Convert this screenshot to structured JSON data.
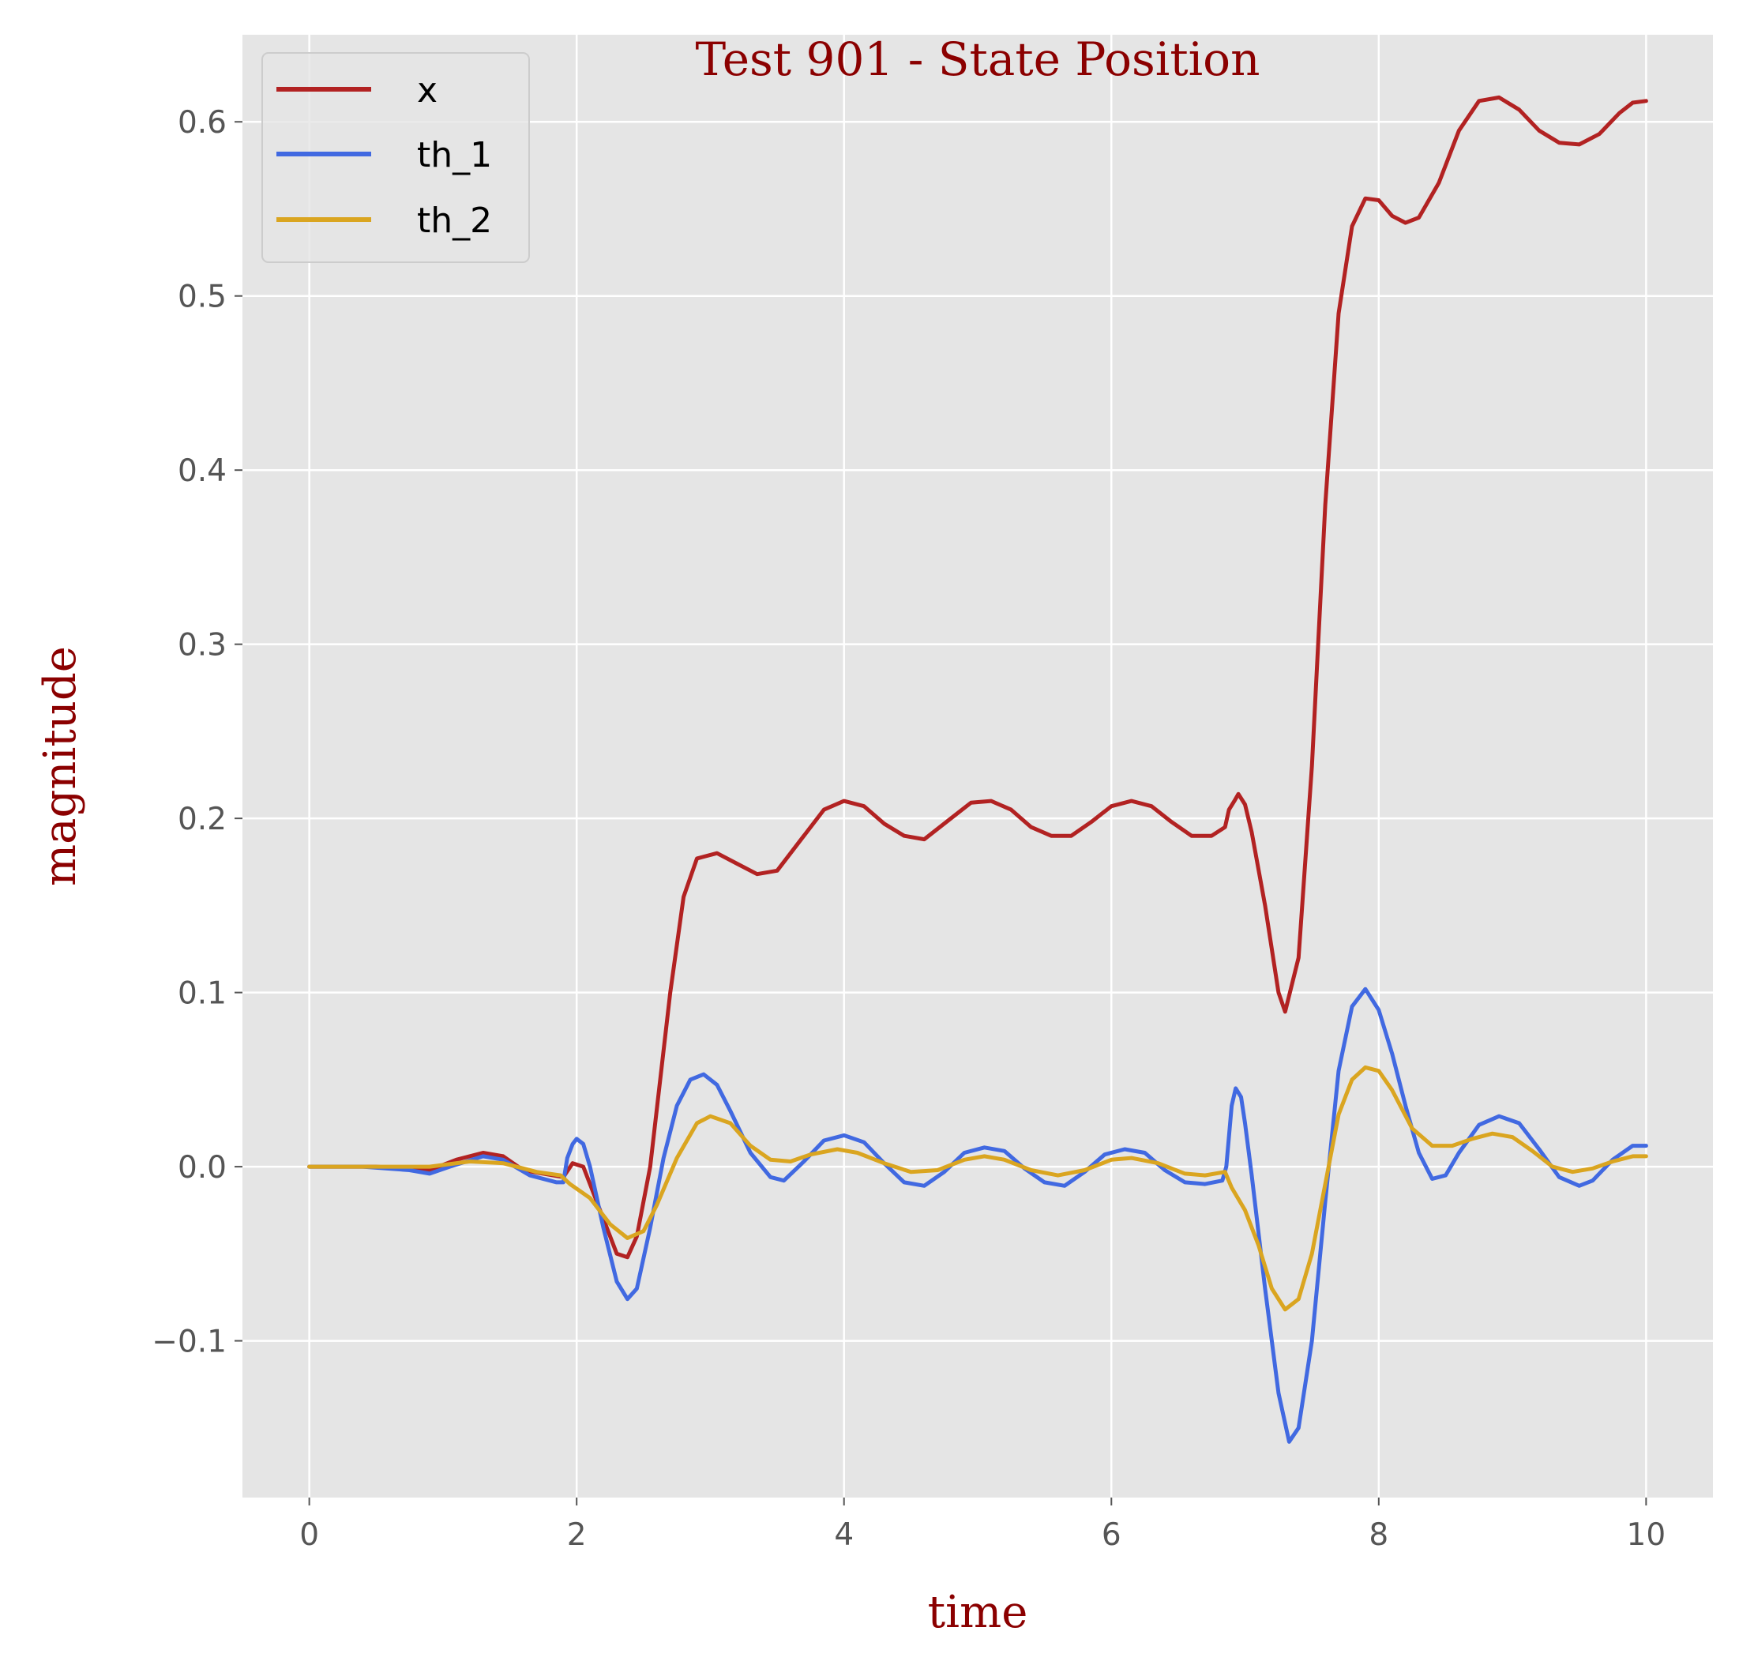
{
  "chart_data": {
    "type": "line",
    "title": "Test 901 - State Position",
    "xlabel": "time",
    "ylabel": "magnitude",
    "xlim": [
      -0.5,
      10.5
    ],
    "ylim": [
      -0.19,
      0.65
    ],
    "x_ticks": [
      0,
      2,
      4,
      6,
      8,
      10
    ],
    "x_tick_labels": [
      "0",
      "2",
      "4",
      "6",
      "8",
      "10"
    ],
    "y_ticks": [
      -0.1,
      0.0,
      0.1,
      0.2,
      0.3,
      0.4,
      0.5,
      0.6
    ],
    "y_tick_labels": [
      "−0.1",
      "0.0",
      "0.1",
      "0.2",
      "0.3",
      "0.4",
      "0.5",
      "0.6"
    ],
    "grid": true,
    "legend_position": "top-left",
    "background_color": "#e5e5e5",
    "series": [
      {
        "name": "x",
        "color": "#b22222",
        "points": [
          [
            0,
            0
          ],
          [
            0.5,
            0
          ],
          [
            0.9,
            -0.002
          ],
          [
            1.1,
            0.004
          ],
          [
            1.3,
            0.008
          ],
          [
            1.45,
            0.006
          ],
          [
            1.6,
            -0.002
          ],
          [
            1.9,
            -0.006
          ],
          [
            1.97,
            0.002
          ],
          [
            2.05,
            0.0
          ],
          [
            2.15,
            -0.02
          ],
          [
            2.3,
            -0.05
          ],
          [
            2.38,
            -0.052
          ],
          [
            2.45,
            -0.04
          ],
          [
            2.55,
            0.0
          ],
          [
            2.7,
            0.1
          ],
          [
            2.8,
            0.155
          ],
          [
            2.9,
            0.177
          ],
          [
            3.05,
            0.18
          ],
          [
            3.2,
            0.174
          ],
          [
            3.35,
            0.168
          ],
          [
            3.5,
            0.17
          ],
          [
            3.7,
            0.19
          ],
          [
            3.85,
            0.205
          ],
          [
            4.0,
            0.21
          ],
          [
            4.15,
            0.207
          ],
          [
            4.3,
            0.197
          ],
          [
            4.45,
            0.19
          ],
          [
            4.6,
            0.188
          ],
          [
            4.8,
            0.2
          ],
          [
            4.95,
            0.209
          ],
          [
            5.1,
            0.21
          ],
          [
            5.25,
            0.205
          ],
          [
            5.4,
            0.195
          ],
          [
            5.55,
            0.19
          ],
          [
            5.7,
            0.19
          ],
          [
            5.85,
            0.198
          ],
          [
            6.0,
            0.207
          ],
          [
            6.15,
            0.21
          ],
          [
            6.3,
            0.207
          ],
          [
            6.45,
            0.198
          ],
          [
            6.6,
            0.19
          ],
          [
            6.75,
            0.19
          ],
          [
            6.85,
            0.195
          ],
          [
            6.88,
            0.205
          ],
          [
            6.92,
            0.21
          ],
          [
            6.95,
            0.214
          ],
          [
            7.0,
            0.208
          ],
          [
            7.05,
            0.192
          ],
          [
            7.15,
            0.15
          ],
          [
            7.25,
            0.1
          ],
          [
            7.3,
            0.089
          ],
          [
            7.4,
            0.12
          ],
          [
            7.5,
            0.23
          ],
          [
            7.6,
            0.38
          ],
          [
            7.7,
            0.49
          ],
          [
            7.8,
            0.54
          ],
          [
            7.9,
            0.556
          ],
          [
            8.0,
            0.555
          ],
          [
            8.1,
            0.546
          ],
          [
            8.2,
            0.542
          ],
          [
            8.3,
            0.545
          ],
          [
            8.45,
            0.565
          ],
          [
            8.6,
            0.595
          ],
          [
            8.75,
            0.612
          ],
          [
            8.9,
            0.614
          ],
          [
            9.05,
            0.607
          ],
          [
            9.2,
            0.595
          ],
          [
            9.35,
            0.588
          ],
          [
            9.5,
            0.587
          ],
          [
            9.65,
            0.593
          ],
          [
            9.8,
            0.605
          ],
          [
            9.9,
            0.611
          ],
          [
            10.0,
            0.612
          ]
        ]
      },
      {
        "name": "th_1",
        "color": "#4169e1",
        "points": [
          [
            0,
            0
          ],
          [
            0.4,
            0
          ],
          [
            0.75,
            -0.002
          ],
          [
            0.9,
            -0.004
          ],
          [
            1.05,
            0.0
          ],
          [
            1.3,
            0.006
          ],
          [
            1.45,
            0.004
          ],
          [
            1.65,
            -0.005
          ],
          [
            1.85,
            -0.009
          ],
          [
            1.9,
            -0.009
          ],
          [
            1.93,
            0.005
          ],
          [
            1.97,
            0.013
          ],
          [
            2.0,
            0.016
          ],
          [
            2.05,
            0.013
          ],
          [
            2.1,
            0.0
          ],
          [
            2.2,
            -0.035
          ],
          [
            2.3,
            -0.066
          ],
          [
            2.38,
            -0.076
          ],
          [
            2.45,
            -0.07
          ],
          [
            2.55,
            -0.035
          ],
          [
            2.65,
            0.005
          ],
          [
            2.75,
            0.035
          ],
          [
            2.85,
            0.05
          ],
          [
            2.95,
            0.053
          ],
          [
            3.05,
            0.047
          ],
          [
            3.15,
            0.032
          ],
          [
            3.3,
            0.008
          ],
          [
            3.45,
            -0.006
          ],
          [
            3.55,
            -0.008
          ],
          [
            3.7,
            0.003
          ],
          [
            3.85,
            0.015
          ],
          [
            4.0,
            0.018
          ],
          [
            4.15,
            0.014
          ],
          [
            4.3,
            0.002
          ],
          [
            4.45,
            -0.009
          ],
          [
            4.6,
            -0.011
          ],
          [
            4.75,
            -0.003
          ],
          [
            4.9,
            0.008
          ],
          [
            5.05,
            0.011
          ],
          [
            5.2,
            0.009
          ],
          [
            5.35,
            -0.001
          ],
          [
            5.5,
            -0.009
          ],
          [
            5.65,
            -0.011
          ],
          [
            5.8,
            -0.003
          ],
          [
            5.95,
            0.007
          ],
          [
            6.1,
            0.01
          ],
          [
            6.25,
            0.008
          ],
          [
            6.4,
            -0.002
          ],
          [
            6.55,
            -0.009
          ],
          [
            6.7,
            -0.01
          ],
          [
            6.83,
            -0.008
          ],
          [
            6.86,
            0.0
          ],
          [
            6.9,
            0.035
          ],
          [
            6.93,
            0.045
          ],
          [
            6.97,
            0.04
          ],
          [
            7.0,
            0.025
          ],
          [
            7.05,
            -0.005
          ],
          [
            7.15,
            -0.07
          ],
          [
            7.25,
            -0.13
          ],
          [
            7.33,
            -0.158
          ],
          [
            7.4,
            -0.15
          ],
          [
            7.5,
            -0.1
          ],
          [
            7.6,
            -0.02
          ],
          [
            7.7,
            0.055
          ],
          [
            7.8,
            0.092
          ],
          [
            7.9,
            0.102
          ],
          [
            8.0,
            0.09
          ],
          [
            8.1,
            0.065
          ],
          [
            8.2,
            0.035
          ],
          [
            8.3,
            0.008
          ],
          [
            8.4,
            -0.007
          ],
          [
            8.5,
            -0.005
          ],
          [
            8.6,
            0.008
          ],
          [
            8.75,
            0.024
          ],
          [
            8.9,
            0.029
          ],
          [
            9.05,
            0.025
          ],
          [
            9.2,
            0.01
          ],
          [
            9.35,
            -0.006
          ],
          [
            9.5,
            -0.011
          ],
          [
            9.6,
            -0.008
          ],
          [
            9.75,
            0.004
          ],
          [
            9.9,
            0.012
          ],
          [
            10.0,
            0.012
          ]
        ]
      },
      {
        "name": "th_2",
        "color": "#daa520",
        "points": [
          [
            0,
            0
          ],
          [
            0.5,
            0
          ],
          [
            0.9,
            0.0
          ],
          [
            1.2,
            0.003
          ],
          [
            1.45,
            0.002
          ],
          [
            1.7,
            -0.003
          ],
          [
            1.88,
            -0.005
          ],
          [
            1.95,
            -0.01
          ],
          [
            2.1,
            -0.018
          ],
          [
            2.25,
            -0.033
          ],
          [
            2.38,
            -0.041
          ],
          [
            2.5,
            -0.037
          ],
          [
            2.6,
            -0.022
          ],
          [
            2.75,
            0.005
          ],
          [
            2.9,
            0.025
          ],
          [
            3.0,
            0.029
          ],
          [
            3.15,
            0.025
          ],
          [
            3.3,
            0.012
          ],
          [
            3.45,
            0.004
          ],
          [
            3.6,
            0.003
          ],
          [
            3.75,
            0.007
          ],
          [
            3.95,
            0.01
          ],
          [
            4.1,
            0.008
          ],
          [
            4.3,
            0.002
          ],
          [
            4.5,
            -0.003
          ],
          [
            4.7,
            -0.002
          ],
          [
            4.9,
            0.004
          ],
          [
            5.05,
            0.006
          ],
          [
            5.2,
            0.004
          ],
          [
            5.4,
            -0.002
          ],
          [
            5.6,
            -0.005
          ],
          [
            5.8,
            -0.002
          ],
          [
            6.0,
            0.004
          ],
          [
            6.15,
            0.005
          ],
          [
            6.35,
            0.002
          ],
          [
            6.55,
            -0.004
          ],
          [
            6.7,
            -0.005
          ],
          [
            6.85,
            -0.003
          ],
          [
            6.9,
            -0.012
          ],
          [
            7.0,
            -0.025
          ],
          [
            7.1,
            -0.045
          ],
          [
            7.2,
            -0.07
          ],
          [
            7.3,
            -0.082
          ],
          [
            7.4,
            -0.076
          ],
          [
            7.5,
            -0.05
          ],
          [
            7.6,
            -0.01
          ],
          [
            7.7,
            0.03
          ],
          [
            7.8,
            0.05
          ],
          [
            7.9,
            0.057
          ],
          [
            8.0,
            0.055
          ],
          [
            8.1,
            0.044
          ],
          [
            8.25,
            0.022
          ],
          [
            8.4,
            0.012
          ],
          [
            8.55,
            0.012
          ],
          [
            8.7,
            0.016
          ],
          [
            8.85,
            0.019
          ],
          [
            9.0,
            0.017
          ],
          [
            9.15,
            0.009
          ],
          [
            9.3,
            0.0
          ],
          [
            9.45,
            -0.003
          ],
          [
            9.6,
            -0.001
          ],
          [
            9.75,
            0.003
          ],
          [
            9.9,
            0.006
          ],
          [
            10.0,
            0.006
          ]
        ]
      }
    ]
  }
}
